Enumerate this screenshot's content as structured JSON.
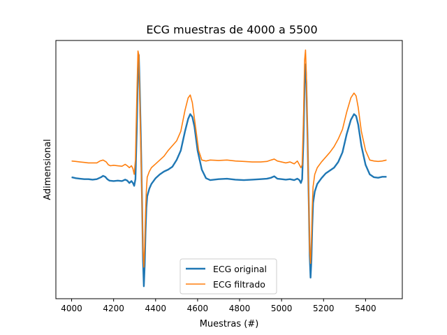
{
  "chart_data": {
    "type": "line",
    "title": "ECG muestras de 4000 a 5500",
    "xlabel": "Muestras (#)",
    "ylabel": "Adimensional",
    "xlim": [
      3925,
      5575
    ],
    "ylim": [
      -1.45,
      1.25
    ],
    "xticks": [
      4000,
      4200,
      4400,
      4600,
      4800,
      5000,
      5200,
      5400
    ],
    "yticks_shown": false,
    "grid": false,
    "legend": {
      "position": "lower center"
    },
    "series": [
      {
        "name": "ECG original",
        "color": "#1f77b4",
        "linewidth": 2.4,
        "points": [
          [
            4000,
            -0.18
          ],
          [
            4020,
            -0.19
          ],
          [
            4040,
            -0.195
          ],
          [
            4060,
            -0.2
          ],
          [
            4080,
            -0.2
          ],
          [
            4100,
            -0.205
          ],
          [
            4120,
            -0.2
          ],
          [
            4140,
            -0.18
          ],
          [
            4150,
            -0.165
          ],
          [
            4160,
            -0.175
          ],
          [
            4170,
            -0.2
          ],
          [
            4180,
            -0.215
          ],
          [
            4200,
            -0.22
          ],
          [
            4220,
            -0.215
          ],
          [
            4240,
            -0.22
          ],
          [
            4255,
            -0.205
          ],
          [
            4265,
            -0.215
          ],
          [
            4275,
            -0.24
          ],
          [
            4285,
            -0.22
          ],
          [
            4292,
            -0.24
          ],
          [
            4298,
            -0.27
          ],
          [
            4304,
            -0.2
          ],
          [
            4310,
            0.3
          ],
          [
            4316,
            0.95
          ],
          [
            4320,
            1.1
          ],
          [
            4324,
            0.8
          ],
          [
            4330,
            0.2
          ],
          [
            4336,
            -0.5
          ],
          [
            4340,
            -1.05
          ],
          [
            4344,
            -1.32
          ],
          [
            4348,
            -1.1
          ],
          [
            4352,
            -0.75
          ],
          [
            4356,
            -0.5
          ],
          [
            4360,
            -0.38
          ],
          [
            4370,
            -0.3
          ],
          [
            4380,
            -0.25
          ],
          [
            4400,
            -0.19
          ],
          [
            4420,
            -0.15
          ],
          [
            4440,
            -0.12
          ],
          [
            4460,
            -0.1
          ],
          [
            4480,
            -0.07
          ],
          [
            4500,
            0.0
          ],
          [
            4520,
            0.1
          ],
          [
            4540,
            0.3
          ],
          [
            4555,
            0.43
          ],
          [
            4565,
            0.48
          ],
          [
            4575,
            0.45
          ],
          [
            4585,
            0.35
          ],
          [
            4600,
            0.1
          ],
          [
            4620,
            -0.1
          ],
          [
            4640,
            -0.19
          ],
          [
            4660,
            -0.21
          ],
          [
            4700,
            -0.2
          ],
          [
            4740,
            -0.195
          ],
          [
            4780,
            -0.205
          ],
          [
            4820,
            -0.21
          ],
          [
            4860,
            -0.205
          ],
          [
            4900,
            -0.2
          ],
          [
            4930,
            -0.195
          ],
          [
            4950,
            -0.185
          ],
          [
            4965,
            -0.17
          ],
          [
            4980,
            -0.195
          ],
          [
            5000,
            -0.2
          ],
          [
            5020,
            -0.205
          ],
          [
            5040,
            -0.2
          ],
          [
            5060,
            -0.21
          ],
          [
            5075,
            -0.195
          ],
          [
            5085,
            -0.21
          ],
          [
            5092,
            -0.24
          ],
          [
            5098,
            -0.2
          ],
          [
            5104,
            0.2
          ],
          [
            5110,
            0.85
          ],
          [
            5114,
            1.0
          ],
          [
            5118,
            0.8
          ],
          [
            5124,
            0.2
          ],
          [
            5130,
            -0.5
          ],
          [
            5134,
            -1.0
          ],
          [
            5138,
            -1.23
          ],
          [
            5142,
            -1.05
          ],
          [
            5146,
            -0.7
          ],
          [
            5150,
            -0.45
          ],
          [
            5158,
            -0.33
          ],
          [
            5170,
            -0.25
          ],
          [
            5190,
            -0.19
          ],
          [
            5210,
            -0.14
          ],
          [
            5230,
            -0.11
          ],
          [
            5250,
            -0.08
          ],
          [
            5270,
            -0.02
          ],
          [
            5290,
            0.08
          ],
          [
            5310,
            0.27
          ],
          [
            5330,
            0.42
          ],
          [
            5345,
            0.48
          ],
          [
            5355,
            0.46
          ],
          [
            5365,
            0.37
          ],
          [
            5380,
            0.15
          ],
          [
            5400,
            -0.05
          ],
          [
            5420,
            -0.15
          ],
          [
            5440,
            -0.18
          ],
          [
            5460,
            -0.185
          ],
          [
            5480,
            -0.175
          ],
          [
            5500,
            -0.175
          ]
        ]
      },
      {
        "name": "ECG filtrado",
        "color": "#ff7f0e",
        "linewidth": 1.6,
        "points": [
          [
            4000,
            -0.01
          ],
          [
            4020,
            -0.015
          ],
          [
            4040,
            -0.02
          ],
          [
            4060,
            -0.025
          ],
          [
            4080,
            -0.03
          ],
          [
            4100,
            -0.03
          ],
          [
            4120,
            -0.03
          ],
          [
            4135,
            -0.01
          ],
          [
            4150,
            0.0
          ],
          [
            4165,
            -0.02
          ],
          [
            4175,
            -0.05
          ],
          [
            4185,
            -0.06
          ],
          [
            4200,
            -0.055
          ],
          [
            4220,
            -0.06
          ],
          [
            4240,
            -0.065
          ],
          [
            4255,
            -0.045
          ],
          [
            4265,
            -0.06
          ],
          [
            4275,
            -0.08
          ],
          [
            4285,
            -0.06
          ],
          [
            4292,
            -0.09
          ],
          [
            4298,
            -0.15
          ],
          [
            4304,
            0.0
          ],
          [
            4310,
            0.6
          ],
          [
            4316,
            1.14
          ],
          [
            4320,
            1.1
          ],
          [
            4324,
            0.7
          ],
          [
            4330,
            0.1
          ],
          [
            4336,
            -0.5
          ],
          [
            4340,
            -0.95
          ],
          [
            4344,
            -1.12
          ],
          [
            4348,
            -0.9
          ],
          [
            4352,
            -0.55
          ],
          [
            4356,
            -0.32
          ],
          [
            4360,
            -0.18
          ],
          [
            4370,
            -0.12
          ],
          [
            4380,
            -0.08
          ],
          [
            4400,
            -0.04
          ],
          [
            4420,
            0.0
          ],
          [
            4440,
            0.04
          ],
          [
            4460,
            0.1
          ],
          [
            4480,
            0.15
          ],
          [
            4500,
            0.2
          ],
          [
            4520,
            0.3
          ],
          [
            4540,
            0.52
          ],
          [
            4555,
            0.65
          ],
          [
            4565,
            0.68
          ],
          [
            4575,
            0.6
          ],
          [
            4590,
            0.35
          ],
          [
            4605,
            0.1
          ],
          [
            4620,
            0.0
          ],
          [
            4640,
            -0.01
          ],
          [
            4660,
            0.0
          ],
          [
            4700,
            -0.005
          ],
          [
            4740,
            0.0
          ],
          [
            4780,
            -0.01
          ],
          [
            4820,
            -0.015
          ],
          [
            4860,
            -0.02
          ],
          [
            4900,
            -0.02
          ],
          [
            4930,
            -0.015
          ],
          [
            4950,
            0.0
          ],
          [
            4965,
            0.01
          ],
          [
            4980,
            -0.01
          ],
          [
            5000,
            -0.02
          ],
          [
            5020,
            -0.03
          ],
          [
            5040,
            -0.02
          ],
          [
            5060,
            -0.04
          ],
          [
            5075,
            -0.01
          ],
          [
            5085,
            -0.05
          ],
          [
            5092,
            -0.08
          ],
          [
            5098,
            -0.05
          ],
          [
            5104,
            0.4
          ],
          [
            5110,
            1.05
          ],
          [
            5114,
            1.15
          ],
          [
            5118,
            0.9
          ],
          [
            5124,
            0.2
          ],
          [
            5130,
            -0.5
          ],
          [
            5134,
            -0.95
          ],
          [
            5138,
            -1.08
          ],
          [
            5142,
            -0.85
          ],
          [
            5146,
            -0.5
          ],
          [
            5150,
            -0.28
          ],
          [
            5158,
            -0.15
          ],
          [
            5170,
            -0.08
          ],
          [
            5190,
            -0.02
          ],
          [
            5210,
            0.03
          ],
          [
            5230,
            0.08
          ],
          [
            5250,
            0.14
          ],
          [
            5270,
            0.22
          ],
          [
            5290,
            0.32
          ],
          [
            5310,
            0.5
          ],
          [
            5330,
            0.65
          ],
          [
            5345,
            0.7
          ],
          [
            5355,
            0.67
          ],
          [
            5365,
            0.55
          ],
          [
            5380,
            0.3
          ],
          [
            5400,
            0.1
          ],
          [
            5420,
            0.0
          ],
          [
            5440,
            -0.01
          ],
          [
            5460,
            -0.015
          ],
          [
            5480,
            -0.01
          ],
          [
            5500,
            0.0
          ]
        ]
      }
    ]
  }
}
